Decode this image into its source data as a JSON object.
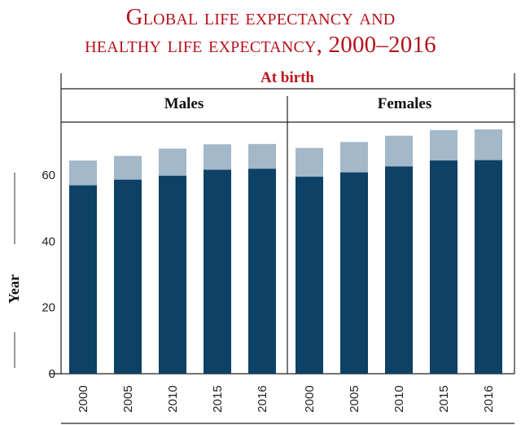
{
  "title_line1": "Global life expectancy and",
  "title_line2": "healthy life expectancy, 2000–2016",
  "chart_data": {
    "type": "bar",
    "subtitle": "At birth",
    "ylabel": "Year",
    "ylim": [
      0,
      76
    ],
    "yticks": [
      0,
      20,
      40,
      60
    ],
    "categories": [
      "2000",
      "2005",
      "2010",
      "2015",
      "2016"
    ],
    "colors": {
      "healthy": "#0d4166",
      "total": "#a3b8c8"
    },
    "panels": [
      {
        "name": "Males",
        "series": [
          {
            "values": [
              56.9,
              58.6,
              59.8,
              61.6,
              61.9
            ]
          },
          {
            "values": [
              64.4,
              65.8,
              68.0,
              69.3,
              69.4
            ]
          }
        ]
      },
      {
        "name": "Females",
        "series": [
          {
            "values": [
              59.5,
              60.8,
              62.6,
              64.4,
              64.5
            ]
          },
          {
            "values": [
              68.2,
              70.0,
              71.9,
              73.6,
              73.8
            ]
          }
        ]
      }
    ]
  }
}
